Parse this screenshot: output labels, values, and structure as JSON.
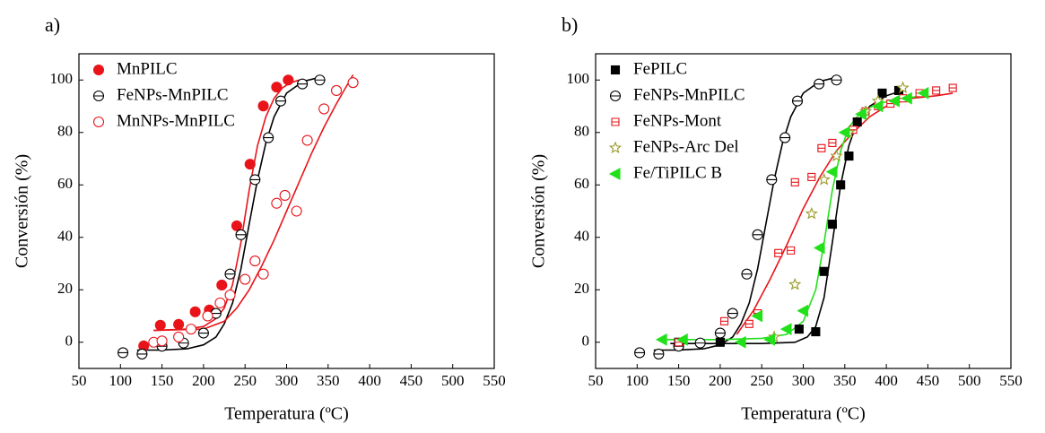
{
  "chart_data": [
    {
      "type": "scatter",
      "panel_label": "a)",
      "x_label": "Temperatura (ºC)",
      "y_label": "Conversión (%)",
      "xlim": [
        50,
        550
      ],
      "ylim": [
        -10,
        110
      ],
      "xticks": [
        50,
        100,
        150,
        200,
        250,
        300,
        350,
        400,
        450,
        500,
        550
      ],
      "yticks": [
        0,
        20,
        40,
        60,
        80,
        100
      ],
      "legend": "upper left",
      "series": [
        {
          "name": "MnPILC",
          "color": "#e8141a",
          "marker": "circle",
          "filled": true,
          "x": [
            128,
            148,
            170,
            190,
            207,
            222,
            240,
            256,
            272,
            288,
            302
          ],
          "values": [
            -1.4,
            6.5,
            6.8,
            11.6,
            12.3,
            21.8,
            44.4,
            67.9,
            90.1,
            97.3,
            100
          ],
          "fit_x": [
            140,
            180,
            200,
            215,
            225,
            235,
            245,
            255,
            265,
            275,
            285,
            295,
            305,
            315
          ],
          "fit_values": [
            4.5,
            5,
            6,
            9,
            13,
            22,
            38,
            58,
            75,
            86,
            93,
            97,
            99,
            100
          ]
        },
        {
          "name": "FeNPs-MnPILC",
          "color": "#000000",
          "marker": "circle-dash",
          "filled": false,
          "x": [
            103,
            126,
            150,
            176,
            200,
            215,
            232,
            245,
            262,
            278,
            293,
            319,
            340
          ],
          "values": [
            -4,
            -4.5,
            -1.5,
            -0.3,
            3.5,
            11,
            26,
            41,
            62,
            78,
            92,
            98.5,
            100
          ],
          "fit_x": [
            120,
            150,
            180,
            200,
            215,
            225,
            235,
            245,
            255,
            265,
            275,
            285,
            300,
            320,
            340
          ],
          "fit_values": [
            -3,
            -3,
            -2.5,
            -1,
            2,
            7,
            15,
            28,
            45,
            62,
            76,
            86,
            95,
            99.5,
            101
          ]
        },
        {
          "name": "MnNPs-MnPILC",
          "color": "#e8141a",
          "marker": "circle",
          "filled": false,
          "x": [
            140,
            150,
            170,
            185,
            205,
            220,
            232,
            250,
            262,
            272,
            288,
            298,
            312,
            325,
            345,
            360,
            380
          ],
          "values": [
            0,
            0.5,
            2,
            5,
            10,
            15,
            18,
            24,
            31,
            26,
            53,
            56,
            50,
            77,
            89,
            96,
            99
          ],
          "fit_x": [
            140,
            200,
            225,
            240,
            255,
            270,
            285,
            300,
            315,
            330,
            345,
            360,
            380
          ],
          "fit_values": [
            4.5,
            5,
            8,
            13,
            20,
            29,
            39,
            50,
            61,
            72,
            82,
            91,
            102
          ]
        }
      ]
    },
    {
      "type": "scatter",
      "panel_label": "b)",
      "x_label": "Temperatura (ºC)",
      "y_label": "Conversión (%)",
      "xlim": [
        50,
        550
      ],
      "ylim": [
        -10,
        110
      ],
      "xticks": [
        50,
        100,
        150,
        200,
        250,
        300,
        350,
        400,
        450,
        500,
        550
      ],
      "yticks": [
        0,
        20,
        40,
        60,
        80,
        100
      ],
      "legend": "upper left",
      "series": [
        {
          "name": "FePILC",
          "color": "#000000",
          "marker": "square",
          "filled": true,
          "x": [
            150,
            200,
            295,
            315,
            325,
            335,
            345,
            355,
            365,
            395,
            415
          ],
          "values": [
            0,
            0,
            5,
            4,
            27,
            45,
            60,
            71,
            84,
            95,
            96
          ],
          "fit_x": [
            140,
            200,
            250,
            290,
            305,
            315,
            325,
            335,
            345,
            355,
            365,
            380,
            400,
            420
          ],
          "fit_values": [
            -0.5,
            -0.5,
            -0.5,
            0,
            2,
            6,
            17,
            38,
            60,
            75,
            84,
            90,
            94,
            96
          ]
        },
        {
          "name": "FeNPs-MnPILC",
          "color": "#000000",
          "marker": "circle-dash",
          "filled": false,
          "x": [
            103,
            126,
            150,
            176,
            200,
            215,
            232,
            245,
            262,
            278,
            293,
            319,
            340
          ],
          "values": [
            -4,
            -4.5,
            -1.5,
            -0.3,
            3.5,
            11,
            26,
            41,
            62,
            78,
            92,
            98.5,
            100
          ],
          "fit_x": [
            120,
            150,
            180,
            200,
            215,
            225,
            235,
            245,
            255,
            265,
            275,
            285,
            300,
            320,
            340
          ],
          "fit_values": [
            -3,
            -3,
            -2.5,
            -1,
            2,
            7,
            15,
            28,
            45,
            62,
            76,
            86,
            95,
            99.5,
            101
          ]
        },
        {
          "name": "FeNPs-Mont",
          "color": "#e8141a",
          "marker": "square-dash",
          "filled": false,
          "x": [
            150,
            205,
            235,
            245,
            270,
            285,
            290,
            310,
            322,
            335,
            360,
            375,
            390,
            405,
            420,
            440,
            460,
            480
          ],
          "values": [
            0,
            8,
            7,
            11,
            34,
            35,
            61,
            63,
            74,
            76,
            81,
            88,
            90,
            91,
            93,
            95,
            96,
            97
          ],
          "fit_x": [
            220,
            240,
            260,
            280,
            300,
            320,
            340,
            360,
            380,
            400,
            430,
            460,
            480
          ],
          "fit_values": [
            3,
            12,
            24,
            37,
            51,
            63,
            73,
            80,
            86,
            90,
            93,
            94,
            95
          ]
        },
        {
          "name": "FeNPs-Arc Del",
          "color": "#9a9a2a",
          "marker": "star",
          "filled": false,
          "x": [
            265,
            290,
            310,
            325,
            340,
            355,
            375,
            390,
            420
          ],
          "values": [
            2,
            22,
            49,
            62,
            71,
            80,
            88,
            92,
            97
          ]
        },
        {
          "name": "Fe/TiPILC B",
          "color": "#22e01a",
          "marker": "triangle-left",
          "filled": true,
          "x": [
            130,
            155,
            225,
            245,
            260,
            280,
            300,
            320,
            335,
            350,
            370,
            390,
            410,
            425,
            445
          ],
          "values": [
            1,
            1,
            0,
            10,
            1,
            5,
            12,
            36,
            65,
            80,
            87,
            90,
            92,
            93,
            95
          ],
          "fit_x": [
            130,
            200,
            250,
            280,
            300,
            315,
            325,
            335,
            345,
            355,
            370,
            390,
            420,
            445
          ],
          "fit_values": [
            1,
            1,
            1.5,
            3,
            8,
            20,
            38,
            58,
            73,
            82,
            88,
            91,
            93,
            94
          ]
        }
      ]
    }
  ]
}
